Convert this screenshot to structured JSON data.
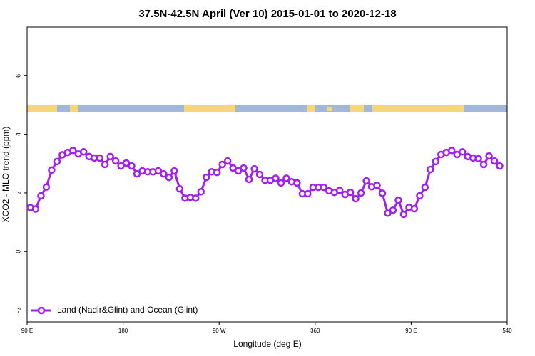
{
  "chart_data": {
    "type": "line",
    "title": "37.5N-42.5N April (Ver 10)   2015-01-01 to 2020-12-18",
    "x_label": "Longitude (deg E)",
    "y_label": "XCO2 - MLO trend (ppm)",
    "x": [
      93,
      98,
      103,
      108,
      113,
      118,
      123,
      128,
      133,
      138,
      143,
      148,
      153,
      158,
      163,
      168,
      173,
      178,
      183,
      188,
      193,
      198,
      203,
      208,
      213,
      218,
      223,
      228,
      233,
      238,
      243,
      248,
      253,
      258,
      263,
      268,
      273,
      278,
      283,
      288,
      293,
      298,
      303,
      308,
      313,
      318,
      323,
      328,
      333,
      338,
      343,
      348,
      353,
      358,
      363,
      368,
      373,
      378,
      383,
      388,
      393,
      398,
      403,
      408,
      413,
      418,
      423,
      428,
      433,
      438,
      443,
      448,
      453,
      458,
      463,
      468,
      473,
      478,
      483,
      488,
      493,
      498,
      503,
      508,
      513,
      518,
      523,
      528,
      533
    ],
    "series": [
      {
        "name": "Land (Nadir&Glint) and Ocean (Glint)",
        "color": "#a020f0",
        "values": [
          1.5,
          1.45,
          1.9,
          2.2,
          2.78,
          3.07,
          3.3,
          3.38,
          3.45,
          3.33,
          3.4,
          3.24,
          3.19,
          3.19,
          2.97,
          3.24,
          3.09,
          2.92,
          3.02,
          2.92,
          2.65,
          2.75,
          2.72,
          2.72,
          2.75,
          2.65,
          2.53,
          2.75,
          2.14,
          1.82,
          1.85,
          1.82,
          2.04,
          2.53,
          2.72,
          2.7,
          2.97,
          3.09,
          2.85,
          2.75,
          2.85,
          2.46,
          2.82,
          2.63,
          2.43,
          2.43,
          2.5,
          2.34,
          2.5,
          2.38,
          2.34,
          1.97,
          1.97,
          2.19,
          2.19,
          2.19,
          2.07,
          2.02,
          2.09,
          1.95,
          2.02,
          1.8,
          2.0,
          2.41,
          2.21,
          2.26,
          1.99,
          1.31,
          1.41,
          1.75,
          1.27,
          1.51,
          1.46,
          1.9,
          2.19,
          2.8,
          3.07,
          3.31,
          3.38,
          3.45,
          3.31,
          3.4,
          3.24,
          3.19,
          3.17,
          2.97,
          3.26,
          3.09,
          2.92
        ]
      }
    ],
    "xlim": [
      90,
      540
    ],
    "xticks": [
      {
        "value": 90,
        "label": "90 E"
      },
      180,
      {
        "value": 270,
        "label": "90 W"
      },
      360,
      {
        "value": 450,
        "label": "90 E"
      },
      540
    ],
    "ylim": [
      -2.4,
      7.66
    ],
    "yticks": [
      -2,
      0,
      2,
      4,
      6
    ],
    "legend": "bottom-left"
  }
}
